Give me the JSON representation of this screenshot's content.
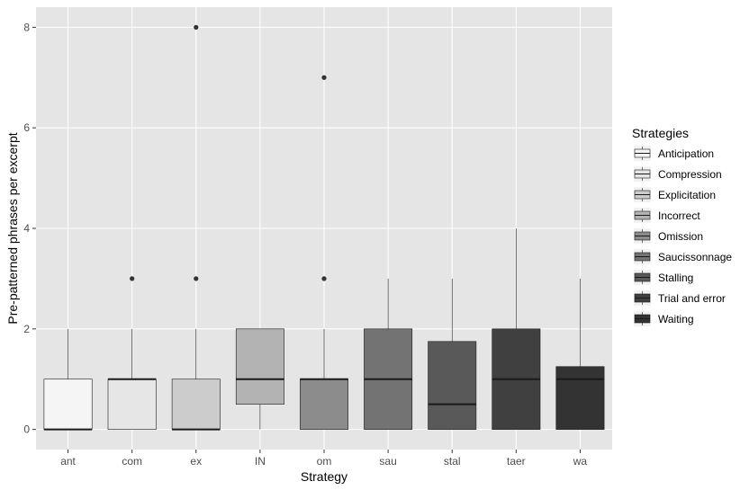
{
  "chart_data": {
    "type": "box",
    "xlabel": "Strategy",
    "ylabel": "Pre-patterned phrases per excerpt",
    "ylim": [
      -0.4,
      8.4
    ],
    "yticks": [
      0,
      2,
      4,
      6,
      8
    ],
    "grid": true,
    "legend_title": "Strategies",
    "legend_position": "right",
    "boxes": [
      {
        "category": "ant",
        "legend": "Anticipation",
        "min": 0,
        "q1": 0,
        "median": 0,
        "q3": 1,
        "max": 2,
        "outliers": [],
        "fill": "#f5f5f5"
      },
      {
        "category": "com",
        "legend": "Compression",
        "min": 0,
        "q1": 0,
        "median": 1,
        "q3": 1,
        "max": 2,
        "outliers": [
          3
        ],
        "fill": "#e6e6e6"
      },
      {
        "category": "ex",
        "legend": "Explicitation",
        "min": 0,
        "q1": 0,
        "median": 0,
        "q3": 1,
        "max": 2,
        "outliers": [
          3,
          8
        ],
        "fill": "#cccccc"
      },
      {
        "category": "IN",
        "legend": "Incorrect",
        "min": 0,
        "q1": 0.5,
        "median": 1,
        "q3": 2,
        "max": 2,
        "outliers": [],
        "fill": "#b3b3b3"
      },
      {
        "category": "om",
        "legend": "Omission",
        "min": 0,
        "q1": 0,
        "median": 1,
        "q3": 1,
        "max": 2,
        "outliers": [
          3,
          7
        ],
        "fill": "#8c8c8c"
      },
      {
        "category": "sau",
        "legend": "Saucissonnage",
        "min": 0,
        "q1": 0,
        "median": 1,
        "q3": 2,
        "max": 3,
        "outliers": [],
        "fill": "#737373"
      },
      {
        "category": "stal",
        "legend": "Stalling",
        "min": 0,
        "q1": 0,
        "median": 0.5,
        "q3": 1.75,
        "max": 3,
        "outliers": [],
        "fill": "#595959"
      },
      {
        "category": "taer",
        "legend": "Trial and error",
        "min": 0,
        "q1": 0,
        "median": 1,
        "q3": 2,
        "max": 4,
        "outliers": [],
        "fill": "#404040"
      },
      {
        "category": "wa",
        "legend": "Waiting",
        "min": 0,
        "q1": 0,
        "median": 1,
        "q3": 1.25,
        "max": 3,
        "outliers": [],
        "fill": "#333333"
      }
    ]
  }
}
